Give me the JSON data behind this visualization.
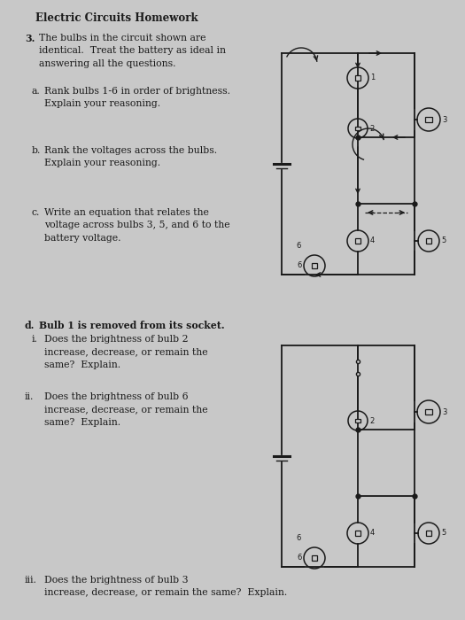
{
  "bg_color": "#c8c8c8",
  "title": "Electric Circuits Homework",
  "q3_text": "The bulbs in the circuit shown are\nidentical.  Treat the battery as ideal in\nanswering all the questions.",
  "qa_text": "Rank bulbs 1-6 in order of brightness.\nExplain your reasoning.",
  "qb_text": "Rank the voltages across the bulbs.\nExplain your reasoning.",
  "qc_text": "Write an equation that relates the\nvoltage across bulbs 3, 5, and 6 to the\nbattery voltage.",
  "qd_text": "Bulb 1 is removed from its socket.",
  "qi_text": "Does the brightness of bulb 2\nincrease, decrease, or remain the\nsame?  Explain.",
  "qii_text": "Does the brightness of bulb 6\nincrease, decrease, or remain the\nsame?  Explain.",
  "qiii_text": "Does the brightness of bulb 3\nincrease, decrease, or remain the same?  Explain.",
  "text_color": "#1a1a1a",
  "line_color": "#1a1a1a",
  "font_size_title": 8.5,
  "font_size_body": 7.8,
  "font_size_label": 6.0
}
